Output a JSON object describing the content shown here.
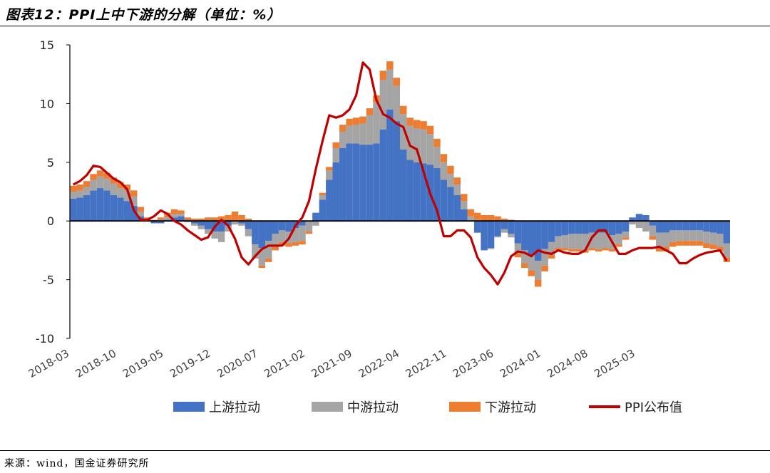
{
  "header": {
    "title": "图表12：PPI上中下游的分解（单位：%）"
  },
  "footer": {
    "source": "来源：wind，国金证券研究所"
  },
  "legend": {
    "upstream": "上游拉动",
    "midstream": "中游拉动",
    "downstream": "下游拉动",
    "ppi": "PPI公布值"
  },
  "colors": {
    "upstream": "#4472c4",
    "midstream": "#a5a5a5",
    "downstream": "#ed7d31",
    "ppi": "#c00000",
    "axis": "#000000"
  },
  "chart_data": {
    "type": "bar",
    "stacked": true,
    "title": "",
    "xlabel": "",
    "ylabel": "",
    "ylim": [
      -10,
      15
    ],
    "yticks": [
      -10,
      -5,
      0,
      5,
      10,
      15
    ],
    "xticks": [
      "2018-03",
      "2018-10",
      "2019-05",
      "2019-12",
      "2020-07",
      "2021-02",
      "2021-09",
      "2022-04",
      "2022-11",
      "2023-06",
      "2024-01",
      "2024-08",
      "2025-03"
    ],
    "x_start": "2018-03",
    "x_end": "2025-08",
    "grid": false,
    "legend_position": "bottom",
    "series": [
      {
        "name": "上游拉动",
        "kind": "bar",
        "values": [
          1.9,
          2.0,
          2.2,
          2.6,
          2.8,
          2.6,
          2.2,
          2.0,
          1.7,
          1.3,
          0.4,
          0.0,
          -0.2,
          -0.2,
          0.1,
          0.3,
          0.4,
          0.1,
          -0.2,
          -0.4,
          -0.7,
          -0.9,
          -0.9,
          -0.4,
          0.0,
          -0.2,
          -0.7,
          -2.0,
          -2.3,
          -1.7,
          -1.1,
          -0.8,
          -0.9,
          -0.6,
          -0.4,
          0.0,
          0.7,
          1.8,
          3.5,
          5.0,
          6.2,
          6.6,
          6.6,
          6.5,
          6.5,
          6.6,
          7.8,
          9.5,
          8.5,
          6.1,
          5.2,
          5.0,
          4.9,
          4.8,
          4.5,
          3.5,
          2.9,
          2.2,
          1.0,
          0.0,
          -1.0,
          -2.5,
          -2.3,
          -1.3,
          -0.7,
          -1.1,
          -1.9,
          -2.5,
          -2.9,
          -3.4,
          -2.4,
          -1.8,
          -1.3,
          -1.2,
          -1.1,
          -1.1,
          -1.1,
          -1.0,
          -1.0,
          -1.0,
          -1.2,
          -1.1,
          -0.9,
          0.3,
          0.6,
          0.5,
          -0.4,
          -1.0,
          -1.0,
          -0.8,
          -0.8,
          -0.8,
          -0.8,
          -0.8,
          -0.9,
          -1.0,
          -1.1,
          -1.9
        ]
      },
      {
        "name": "中游拉动",
        "kind": "bar",
        "values": [
          0.6,
          0.6,
          0.7,
          0.9,
          1.0,
          1.0,
          1.0,
          0.8,
          0.9,
          0.8,
          0.4,
          0.1,
          0.0,
          0.1,
          0.2,
          0.3,
          0.2,
          -0.1,
          -0.2,
          -0.3,
          -0.4,
          -0.6,
          -0.9,
          -0.5,
          -0.3,
          -0.2,
          -0.6,
          -1.2,
          -1.5,
          -1.5,
          -1.1,
          -1.0,
          -1.0,
          -1.2,
          -1.3,
          -0.9,
          -0.4,
          0.4,
          0.8,
          1.2,
          1.4,
          1.5,
          1.6,
          1.8,
          2.5,
          3.5,
          4.2,
          3.4,
          3.0,
          3.0,
          2.9,
          2.9,
          2.9,
          2.6,
          1.8,
          1.5,
          1.1,
          0.9,
          0.7,
          0.4,
          0.1,
          0.0,
          -0.1,
          -0.1,
          -0.3,
          -0.3,
          -0.9,
          -1.1,
          -1.3,
          -1.6,
          -1.4,
          -1.1,
          -1.0,
          -1.1,
          -1.3,
          -1.3,
          -1.4,
          -1.3,
          -1.4,
          -1.3,
          -1.2,
          -0.9,
          -0.5,
          -0.3,
          -0.6,
          -0.9,
          -0.9,
          -1.2,
          -1.2,
          -1.0,
          -0.9,
          -0.9,
          -0.9,
          -0.9,
          -1.0,
          -1.0,
          -1.1,
          -1.2
        ]
      },
      {
        "name": "下游拉动",
        "kind": "bar",
        "values": [
          0.5,
          0.5,
          0.5,
          0.5,
          0.5,
          0.5,
          0.5,
          0.5,
          0.5,
          0.5,
          0.4,
          0.2,
          0.1,
          0.2,
          0.4,
          0.4,
          0.3,
          0.2,
          0.2,
          0.2,
          0.3,
          0.3,
          0.4,
          0.5,
          0.8,
          0.5,
          0.2,
          0.0,
          -0.2,
          -0.3,
          -0.3,
          -0.3,
          -0.3,
          -0.3,
          -0.3,
          -0.2,
          0.0,
          0.2,
          0.3,
          0.5,
          0.6,
          0.6,
          0.6,
          0.6,
          0.6,
          0.6,
          0.8,
          0.7,
          0.7,
          0.7,
          0.7,
          0.7,
          0.7,
          0.7,
          0.7,
          0.7,
          0.7,
          0.6,
          0.6,
          0.6,
          0.6,
          0.5,
          0.5,
          0.4,
          0.2,
          0.1,
          -0.3,
          -0.4,
          -0.5,
          -0.6,
          -0.5,
          -0.3,
          -0.2,
          -0.2,
          -0.2,
          -0.2,
          -0.2,
          -0.2,
          -0.2,
          -0.2,
          -0.2,
          -0.2,
          -0.2,
          0.0,
          0.0,
          0.0,
          -0.3,
          -0.4,
          -0.4,
          -0.4,
          -0.4,
          -0.4,
          -0.4,
          -0.4,
          -0.4,
          -0.4,
          -0.4,
          -0.4
        ]
      },
      {
        "name": "PPI公布值",
        "kind": "line",
        "values": [
          3.1,
          3.4,
          3.9,
          4.7,
          4.6,
          4.1,
          3.6,
          3.3,
          2.7,
          0.9,
          0.1,
          0.1,
          0.4,
          0.9,
          0.6,
          0.0,
          -0.3,
          -0.8,
          -1.2,
          -1.6,
          -1.4,
          -0.5,
          0.1,
          -0.4,
          -1.5,
          -3.1,
          -3.7,
          -3.0,
          -2.4,
          -2.1,
          -2.1,
          -2.1,
          -1.5,
          -0.4,
          0.3,
          1.7,
          4.4,
          6.8,
          9.0,
          8.8,
          9.0,
          9.5,
          10.7,
          13.5,
          12.9,
          10.3,
          9.1,
          8.8,
          8.3,
          8.0,
          6.4,
          6.1,
          4.2,
          2.3,
          0.9,
          -1.3,
          -1.3,
          -0.8,
          -0.8,
          -1.4,
          -3.1,
          -4.0,
          -4.6,
          -5.4,
          -4.4,
          -3.0,
          -2.6,
          -2.7,
          -3.0,
          -2.5,
          -2.7,
          -2.8,
          -2.5,
          -2.7,
          -2.8,
          -2.8,
          -2.5,
          -1.4,
          -0.8,
          -0.8,
          -1.8,
          -2.8,
          -2.8,
          -2.5,
          -2.3,
          -2.3,
          -2.3,
          -2.2,
          -2.5,
          -2.8,
          -3.6,
          -3.6,
          -3.2,
          -2.9,
          -2.7,
          -2.6,
          -2.5,
          -3.4
        ]
      }
    ]
  }
}
